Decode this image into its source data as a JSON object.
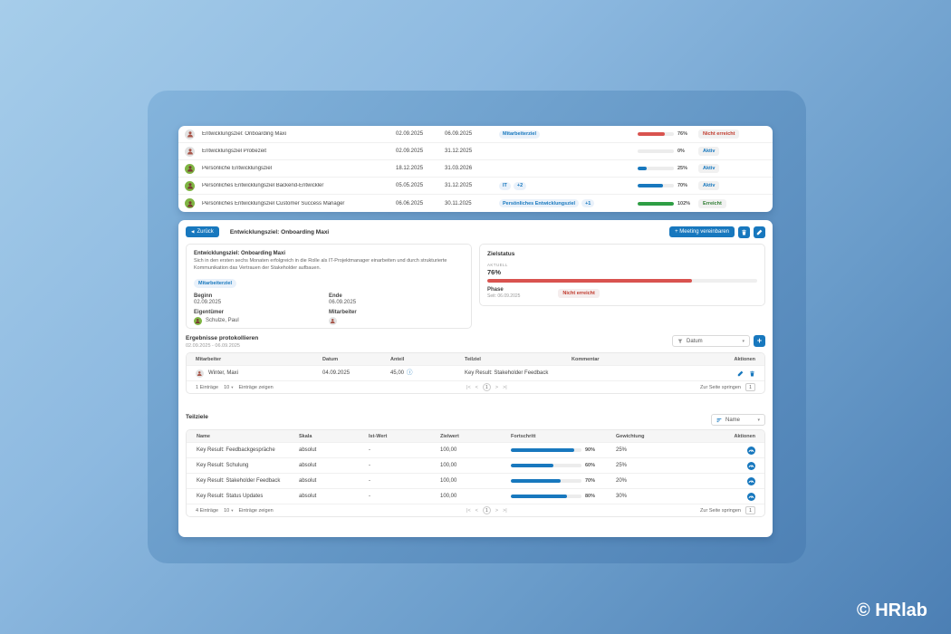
{
  "app": {
    "copyright": "© HRlab"
  },
  "goals_table": {
    "rows": [
      {
        "name": "Entwicklungsziel: Onboarding Maxi",
        "start": "02.09.2025",
        "end": "06.09.2025",
        "tag1": "Mitarbeiterziel",
        "tag2": "",
        "progress": 76,
        "progress_label": "76%",
        "bar_color": "#d9534f",
        "status": "Nicht erreicht",
        "status_color": "#c0392b"
      },
      {
        "name": "Entwicklungsziel Probezeit",
        "start": "02.09.2025",
        "end": "31.12.2025",
        "tag1": "",
        "tag2": "",
        "progress": 0,
        "progress_label": "0%",
        "bar_color": "#d9534f",
        "status": "Aktiv",
        "status_color": "#1878be"
      },
      {
        "name": "Persönliche Entwicklungsziel",
        "start": "18.12.2025",
        "end": "31.03.2026",
        "tag1": "",
        "tag2": "",
        "progress": 25,
        "progress_label": "25%",
        "bar_color": "#1878be",
        "status": "Aktiv",
        "status_color": "#1878be"
      },
      {
        "name": "Persönliches Entwicklungsziel Backend-Entwickler",
        "start": "05.05.2025",
        "end": "31.12.2025",
        "tag1": "IT",
        "tag2": "+2",
        "progress": 70,
        "progress_label": "70%",
        "bar_color": "#1878be",
        "status": "Aktiv",
        "status_color": "#1878be"
      },
      {
        "name": "Persönliches Entwicklungsziel Customer Success Manager",
        "start": "06.06.2025",
        "end": "30.11.2025",
        "tag1": "Persönliches Entwicklungsziel",
        "tag2": "+1",
        "progress": 102,
        "progress_label": "102%",
        "bar_color": "#2e9e44",
        "status": "Erreicht",
        "status_color": "#2e7d32"
      }
    ]
  },
  "detail": {
    "back_label": "Zurück",
    "back_icon": "◀",
    "title": "Entwicklungsziel: Onboarding Maxi",
    "meeting_button": "+ Meeting vereinbaren",
    "info": {
      "title": "Entwicklungsziel: Onboarding Maxi",
      "description": "Sich in den ersten sechs Monaten erfolgreich in die Rolle als IT-Projektmanager einarbeiten und durch strukturierte Kommunikation das Vertrauen der Stakeholder aufbauen.",
      "badge": "Mitarbeiterziel",
      "begin_label": "Beginn",
      "begin_value": "02.09.2025",
      "end_label": "Ende",
      "end_value": "06.09.2025",
      "owner_label": "Eigentümer",
      "owner_value": "Schulze, Paul",
      "employee_label": "Mitarbeiter"
    },
    "status": {
      "title": "Zielstatus",
      "current_label": "AKTUELL",
      "current_value": "76%",
      "progress": 76,
      "bar_color": "#d9534f",
      "phase_label": "Phase",
      "phase_since": "Seit: 06.09.2025",
      "badge": "Nicht erreicht",
      "badge_color": "#c0392b"
    }
  },
  "results": {
    "title": "Ergebnisse protokollieren",
    "date_range": "02.09.2025 - 06.09.2025",
    "sort_label": "Datum",
    "sort_caret": "▾",
    "add_label": "+",
    "headers": {
      "employee": "Mitarbeiter",
      "date": "Datum",
      "share": "Anteil",
      "subgoal": "Teilziel",
      "comment": "Kommentar",
      "actions": "Aktionen"
    },
    "row": {
      "employee": "Winter, Maxi",
      "date": "04.09.2025",
      "share": "45,00",
      "info_icon": "ⓘ",
      "subgoal": "Key Result: Stakeholder Feedback",
      "comment": ""
    },
    "footer": {
      "count": "1 Einträge",
      "per_page": "10",
      "per_page_caret": "▾",
      "show_label": "Einträge zeigen",
      "jump_label": "Zur Seite springen",
      "page": "1"
    }
  },
  "subgoals": {
    "title": "Teilziele",
    "sort_label": "Name",
    "sort_caret": "▾",
    "headers": {
      "name": "Name",
      "scale": "Skala",
      "actual": "Ist-Wert",
      "target": "Zielwert",
      "progress": "Fortschritt",
      "weight": "Gewichtung",
      "actions": "Aktionen"
    },
    "bar_color": "#1878be",
    "rows": [
      {
        "name": "Key Result: Feedbackgespräche",
        "scale": "absolut",
        "actual": "-",
        "target": "100,00",
        "progress": 90,
        "progress_label": "90%",
        "weight": "25%"
      },
      {
        "name": "Key Result: Schulung",
        "scale": "absolut",
        "actual": "-",
        "target": "100,00",
        "progress": 60,
        "progress_label": "60%",
        "weight": "25%"
      },
      {
        "name": "Key Result: Stakeholder Feedback",
        "scale": "absolut",
        "actual": "-",
        "target": "100,00",
        "progress": 70,
        "progress_label": "70%",
        "weight": "20%"
      },
      {
        "name": "Key Result: Status Updates",
        "scale": "absolut",
        "actual": "-",
        "target": "100,00",
        "progress": 80,
        "progress_label": "80%",
        "weight": "30%"
      }
    ],
    "footer": {
      "count": "4 Einträge",
      "per_page": "10",
      "per_page_caret": "▾",
      "show_label": "Einträge zeigen",
      "jump_label": "Zur Seite springen",
      "page": "1"
    }
  },
  "pagination_icons": {
    "first": "|<",
    "prev": "<",
    "next": ">",
    "last": ">|"
  }
}
